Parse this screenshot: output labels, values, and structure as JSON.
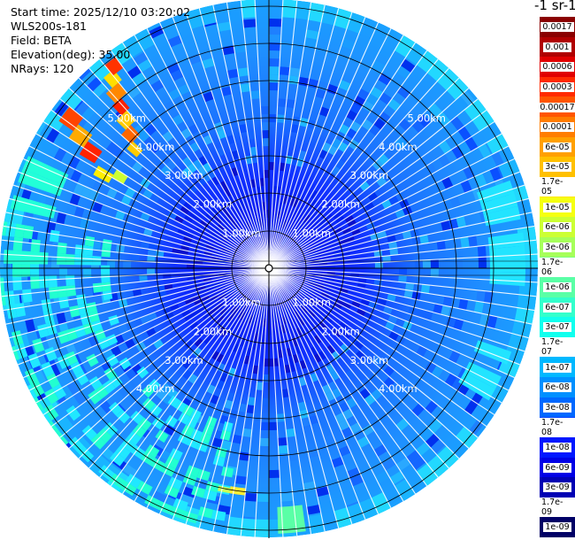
{
  "header": {
    "start_time": "Start time: 2025/12/10 03:20:02",
    "instrument": "WLS200s-181",
    "field": "Field: BETA",
    "elevation": "Elevation(deg): 35.00",
    "nrays": "NRays: 120"
  },
  "colorbar": {
    "title": "-1 sr-1",
    "ticks": [
      "0.0017",
      "0.001",
      "0.0006",
      "0.0003",
      "0.00017",
      "0.0001",
      "6e-05",
      "3e-05",
      "1.7e-05",
      "1e-05",
      "6e-06",
      "3e-06",
      "1.7e-06",
      "1e-06",
      "6e-07",
      "3e-07",
      "1.7e-07",
      "1e-07",
      "6e-08",
      "3e-08",
      "1.7e-08",
      "1e-08",
      "6e-09",
      "3e-09",
      "1.7e-09",
      "1e-09"
    ],
    "colors": [
      "#8a0000",
      "#b00000",
      "#e00000",
      "#ff2a00",
      "#ff5500",
      "#ff7d00",
      "#ffa000",
      "#ffc000",
      "#ffe600",
      "#f5ff10",
      "#ccff33",
      "#a6ff5a",
      "#80ff80",
      "#5aff a6",
      "#33ffcc",
      "#10ffee",
      "#00e0ff",
      "#00b8ff",
      "#0090ff",
      "#0068ff",
      "#0040ff",
      "#0018ff",
      "#0000e6",
      "#0000b4",
      "#00008a",
      "#000066"
    ]
  },
  "rings": {
    "labels": [
      "1.00km",
      "2.00km",
      "3.00km",
      "4.00km",
      "5.00km"
    ]
  },
  "field_colors": {
    "background": "#1f8fff",
    "inner": "#0a30ff",
    "grid": "#000000",
    "spoke": "#ffffff",
    "plume_hot": "#ff3300",
    "plume_warm": "#ffcc00",
    "outer_cyan": "#22ffd8"
  }
}
